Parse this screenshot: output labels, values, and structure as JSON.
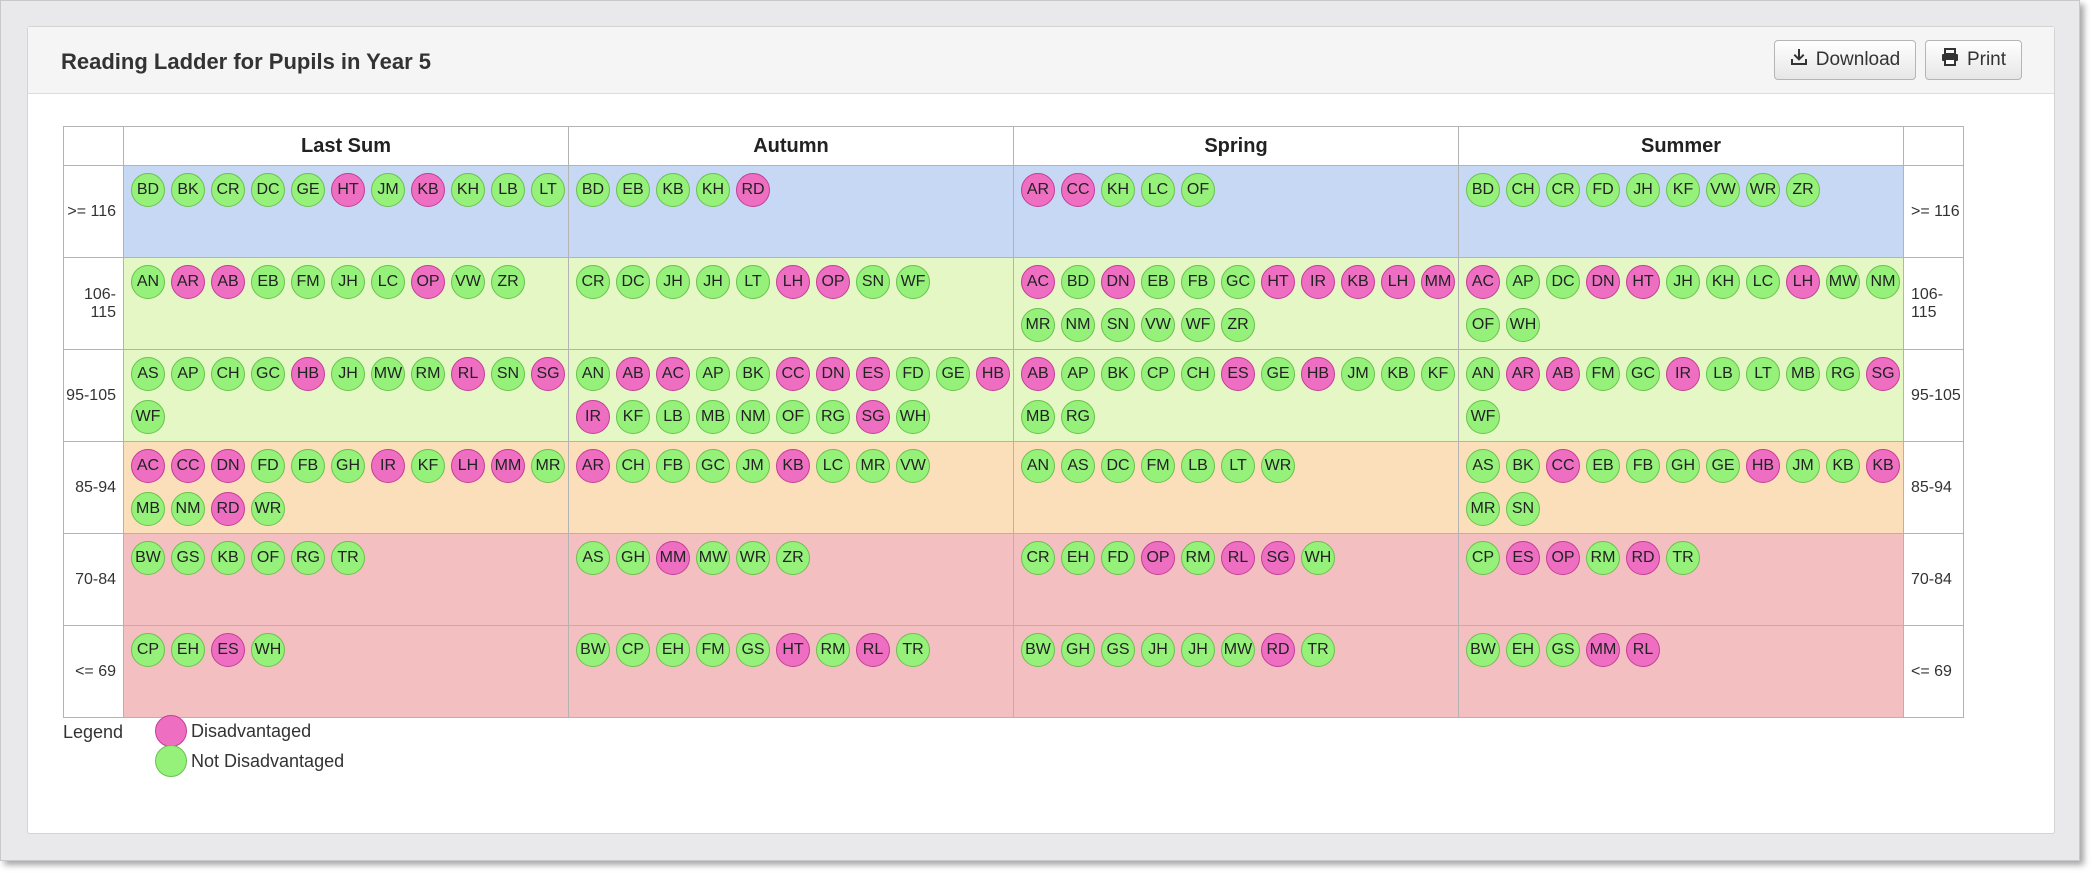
{
  "panel": {
    "title": "Reading Ladder for Pupils in Year 5",
    "download_label": "Download",
    "print_label": "Print"
  },
  "colors": {
    "disadvantaged": "#ee6fc2",
    "not_disadvantaged": "#95f17a",
    "band_blue": "#c6d8f4",
    "band_green": "#e4f7c5",
    "band_orange": "#fadfba",
    "band_red": "#f4bfc0"
  },
  "terms": [
    "Last Sum",
    "Autumn",
    "Spring",
    "Summer"
  ],
  "bands": [
    {
      "label": ">= 116",
      "color": "band_blue",
      "cells": [
        [
          [
            "BD",
            "g"
          ],
          [
            "BK",
            "g"
          ],
          [
            "CR",
            "g"
          ],
          [
            "DC",
            "g"
          ],
          [
            "GE",
            "g"
          ],
          [
            "HT",
            "p"
          ],
          [
            "JM",
            "g"
          ],
          [
            "KB",
            "p"
          ],
          [
            "KH",
            "g"
          ],
          [
            "LB",
            "g"
          ],
          [
            "LT",
            "g"
          ]
        ],
        [
          [
            "BD",
            "g"
          ],
          [
            "EB",
            "g"
          ],
          [
            "KB",
            "g"
          ],
          [
            "KH",
            "g"
          ],
          [
            "RD",
            "p"
          ]
        ],
        [
          [
            "AR",
            "p"
          ],
          [
            "CC",
            "p"
          ],
          [
            "KH",
            "g"
          ],
          [
            "LC",
            "g"
          ],
          [
            "OF",
            "g"
          ]
        ],
        [
          [
            "BD",
            "g"
          ],
          [
            "CH",
            "g"
          ],
          [
            "CR",
            "g"
          ],
          [
            "FD",
            "g"
          ],
          [
            "JH",
            "g"
          ],
          [
            "KF",
            "g"
          ],
          [
            "VW",
            "g"
          ],
          [
            "WR",
            "g"
          ],
          [
            "ZR",
            "g"
          ]
        ]
      ]
    },
    {
      "label": "106-115",
      "color": "band_green",
      "cells": [
        [
          [
            "AN",
            "g"
          ],
          [
            "AR",
            "p"
          ],
          [
            "AB",
            "p"
          ],
          [
            "EB",
            "g"
          ],
          [
            "FM",
            "g"
          ],
          [
            "JH",
            "g"
          ],
          [
            "LC",
            "g"
          ],
          [
            "OP",
            "p"
          ],
          [
            "VW",
            "g"
          ],
          [
            "ZR",
            "g"
          ]
        ],
        [
          [
            "CR",
            "g"
          ],
          [
            "DC",
            "g"
          ],
          [
            "JH",
            "g"
          ],
          [
            "JH",
            "g"
          ],
          [
            "LT",
            "g"
          ],
          [
            "LH",
            "p"
          ],
          [
            "OP",
            "p"
          ],
          [
            "SN",
            "g"
          ],
          [
            "WF",
            "g"
          ]
        ],
        [
          [
            "AC",
            "p"
          ],
          [
            "BD",
            "g"
          ],
          [
            "DN",
            "p"
          ],
          [
            "EB",
            "g"
          ],
          [
            "FB",
            "g"
          ],
          [
            "GC",
            "g"
          ],
          [
            "HT",
            "p"
          ],
          [
            "IR",
            "p"
          ],
          [
            "KB",
            "p"
          ],
          [
            "LH",
            "p"
          ],
          [
            "MM",
            "p"
          ],
          [
            "MR",
            "g"
          ],
          [
            "NM",
            "g"
          ],
          [
            "SN",
            "g"
          ],
          [
            "VW",
            "g"
          ],
          [
            "WF",
            "g"
          ],
          [
            "ZR",
            "g"
          ]
        ],
        [
          [
            "AC",
            "p"
          ],
          [
            "AP",
            "g"
          ],
          [
            "DC",
            "g"
          ],
          [
            "DN",
            "p"
          ],
          [
            "HT",
            "p"
          ],
          [
            "JH",
            "g"
          ],
          [
            "KH",
            "g"
          ],
          [
            "LC",
            "g"
          ],
          [
            "LH",
            "p"
          ],
          [
            "MW",
            "g"
          ],
          [
            "NM",
            "g"
          ],
          [
            "OF",
            "g"
          ],
          [
            "WH",
            "g"
          ]
        ]
      ]
    },
    {
      "label": "95-105",
      "color": "band_green",
      "cells": [
        [
          [
            "AS",
            "g"
          ],
          [
            "AP",
            "g"
          ],
          [
            "CH",
            "g"
          ],
          [
            "GC",
            "g"
          ],
          [
            "HB",
            "p"
          ],
          [
            "JH",
            "g"
          ],
          [
            "MW",
            "g"
          ],
          [
            "RM",
            "g"
          ],
          [
            "RL",
            "p"
          ],
          [
            "SN",
            "g"
          ],
          [
            "SG",
            "p"
          ],
          [
            "WF",
            "g"
          ]
        ],
        [
          [
            "AN",
            "g"
          ],
          [
            "AB",
            "p"
          ],
          [
            "AC",
            "p"
          ],
          [
            "AP",
            "g"
          ],
          [
            "BK",
            "g"
          ],
          [
            "CC",
            "p"
          ],
          [
            "DN",
            "p"
          ],
          [
            "ES",
            "p"
          ],
          [
            "FD",
            "g"
          ],
          [
            "GE",
            "g"
          ],
          [
            "HB",
            "p"
          ],
          [
            "IR",
            "p"
          ],
          [
            "KF",
            "g"
          ],
          [
            "LB",
            "g"
          ],
          [
            "MB",
            "g"
          ],
          [
            "NM",
            "g"
          ],
          [
            "OF",
            "g"
          ],
          [
            "RG",
            "g"
          ],
          [
            "SG",
            "p"
          ],
          [
            "WH",
            "g"
          ]
        ],
        [
          [
            "AB",
            "p"
          ],
          [
            "AP",
            "g"
          ],
          [
            "BK",
            "g"
          ],
          [
            "CP",
            "g"
          ],
          [
            "CH",
            "g"
          ],
          [
            "ES",
            "p"
          ],
          [
            "GE",
            "g"
          ],
          [
            "HB",
            "p"
          ],
          [
            "JM",
            "g"
          ],
          [
            "KB",
            "g"
          ],
          [
            "KF",
            "g"
          ],
          [
            "MB",
            "g"
          ],
          [
            "RG",
            "g"
          ]
        ],
        [
          [
            "AN",
            "g"
          ],
          [
            "AR",
            "p"
          ],
          [
            "AB",
            "p"
          ],
          [
            "FM",
            "g"
          ],
          [
            "GC",
            "g"
          ],
          [
            "IR",
            "p"
          ],
          [
            "LB",
            "g"
          ],
          [
            "LT",
            "g"
          ],
          [
            "MB",
            "g"
          ],
          [
            "RG",
            "g"
          ],
          [
            "SG",
            "p"
          ],
          [
            "WF",
            "g"
          ]
        ]
      ]
    },
    {
      "label": "85-94",
      "color": "band_orange",
      "cells": [
        [
          [
            "AC",
            "p"
          ],
          [
            "CC",
            "p"
          ],
          [
            "DN",
            "p"
          ],
          [
            "FD",
            "g"
          ],
          [
            "FB",
            "g"
          ],
          [
            "GH",
            "g"
          ],
          [
            "IR",
            "p"
          ],
          [
            "KF",
            "g"
          ],
          [
            "LH",
            "p"
          ],
          [
            "MM",
            "p"
          ],
          [
            "MR",
            "g"
          ],
          [
            "MB",
            "g"
          ],
          [
            "NM",
            "g"
          ],
          [
            "RD",
            "p"
          ],
          [
            "WR",
            "g"
          ]
        ],
        [
          [
            "AR",
            "p"
          ],
          [
            "CH",
            "g"
          ],
          [
            "FB",
            "g"
          ],
          [
            "GC",
            "g"
          ],
          [
            "JM",
            "g"
          ],
          [
            "KB",
            "p"
          ],
          [
            "LC",
            "g"
          ],
          [
            "MR",
            "g"
          ],
          [
            "VW",
            "g"
          ]
        ],
        [
          [
            "AN",
            "g"
          ],
          [
            "AS",
            "g"
          ],
          [
            "DC",
            "g"
          ],
          [
            "FM",
            "g"
          ],
          [
            "LB",
            "g"
          ],
          [
            "LT",
            "g"
          ],
          [
            "WR",
            "g"
          ]
        ],
        [
          [
            "AS",
            "g"
          ],
          [
            "BK",
            "g"
          ],
          [
            "CC",
            "p"
          ],
          [
            "EB",
            "g"
          ],
          [
            "FB",
            "g"
          ],
          [
            "GH",
            "g"
          ],
          [
            "GE",
            "g"
          ],
          [
            "HB",
            "p"
          ],
          [
            "JM",
            "g"
          ],
          [
            "KB",
            "g"
          ],
          [
            "KB",
            "p"
          ],
          [
            "MR",
            "g"
          ],
          [
            "SN",
            "g"
          ]
        ]
      ]
    },
    {
      "label": "70-84",
      "color": "band_red",
      "cells": [
        [
          [
            "BW",
            "g"
          ],
          [
            "GS",
            "g"
          ],
          [
            "KB",
            "g"
          ],
          [
            "OF",
            "g"
          ],
          [
            "RG",
            "g"
          ],
          [
            "TR",
            "g"
          ]
        ],
        [
          [
            "AS",
            "g"
          ],
          [
            "GH",
            "g"
          ],
          [
            "MM",
            "p"
          ],
          [
            "MW",
            "g"
          ],
          [
            "WR",
            "g"
          ],
          [
            "ZR",
            "g"
          ]
        ],
        [
          [
            "CR",
            "g"
          ],
          [
            "EH",
            "g"
          ],
          [
            "FD",
            "g"
          ],
          [
            "OP",
            "p"
          ],
          [
            "RM",
            "g"
          ],
          [
            "RL",
            "p"
          ],
          [
            "SG",
            "p"
          ],
          [
            "WH",
            "g"
          ]
        ],
        [
          [
            "CP",
            "g"
          ],
          [
            "ES",
            "p"
          ],
          [
            "OP",
            "p"
          ],
          [
            "RM",
            "g"
          ],
          [
            "RD",
            "p"
          ],
          [
            "TR",
            "g"
          ]
        ]
      ]
    },
    {
      "label": "<= 69",
      "color": "band_red",
      "cells": [
        [
          [
            "CP",
            "g"
          ],
          [
            "EH",
            "g"
          ],
          [
            "ES",
            "p"
          ],
          [
            "WH",
            "g"
          ]
        ],
        [
          [
            "BW",
            "g"
          ],
          [
            "CP",
            "g"
          ],
          [
            "EH",
            "g"
          ],
          [
            "FM",
            "g"
          ],
          [
            "GS",
            "g"
          ],
          [
            "HT",
            "p"
          ],
          [
            "RM",
            "g"
          ],
          [
            "RL",
            "p"
          ],
          [
            "TR",
            "g"
          ]
        ],
        [
          [
            "BW",
            "g"
          ],
          [
            "GH",
            "g"
          ],
          [
            "GS",
            "g"
          ],
          [
            "JH",
            "g"
          ],
          [
            "JH",
            "g"
          ],
          [
            "MW",
            "g"
          ],
          [
            "RD",
            "p"
          ],
          [
            "TR",
            "g"
          ]
        ],
        [
          [
            "BW",
            "g"
          ],
          [
            "EH",
            "g"
          ],
          [
            "GS",
            "g"
          ],
          [
            "MM",
            "p"
          ],
          [
            "RL",
            "p"
          ]
        ]
      ]
    }
  ],
  "legend": {
    "title": "Legend",
    "disadvantaged_label": "Disadvantaged",
    "not_disadvantaged_label": "Not Disadvantaged"
  }
}
